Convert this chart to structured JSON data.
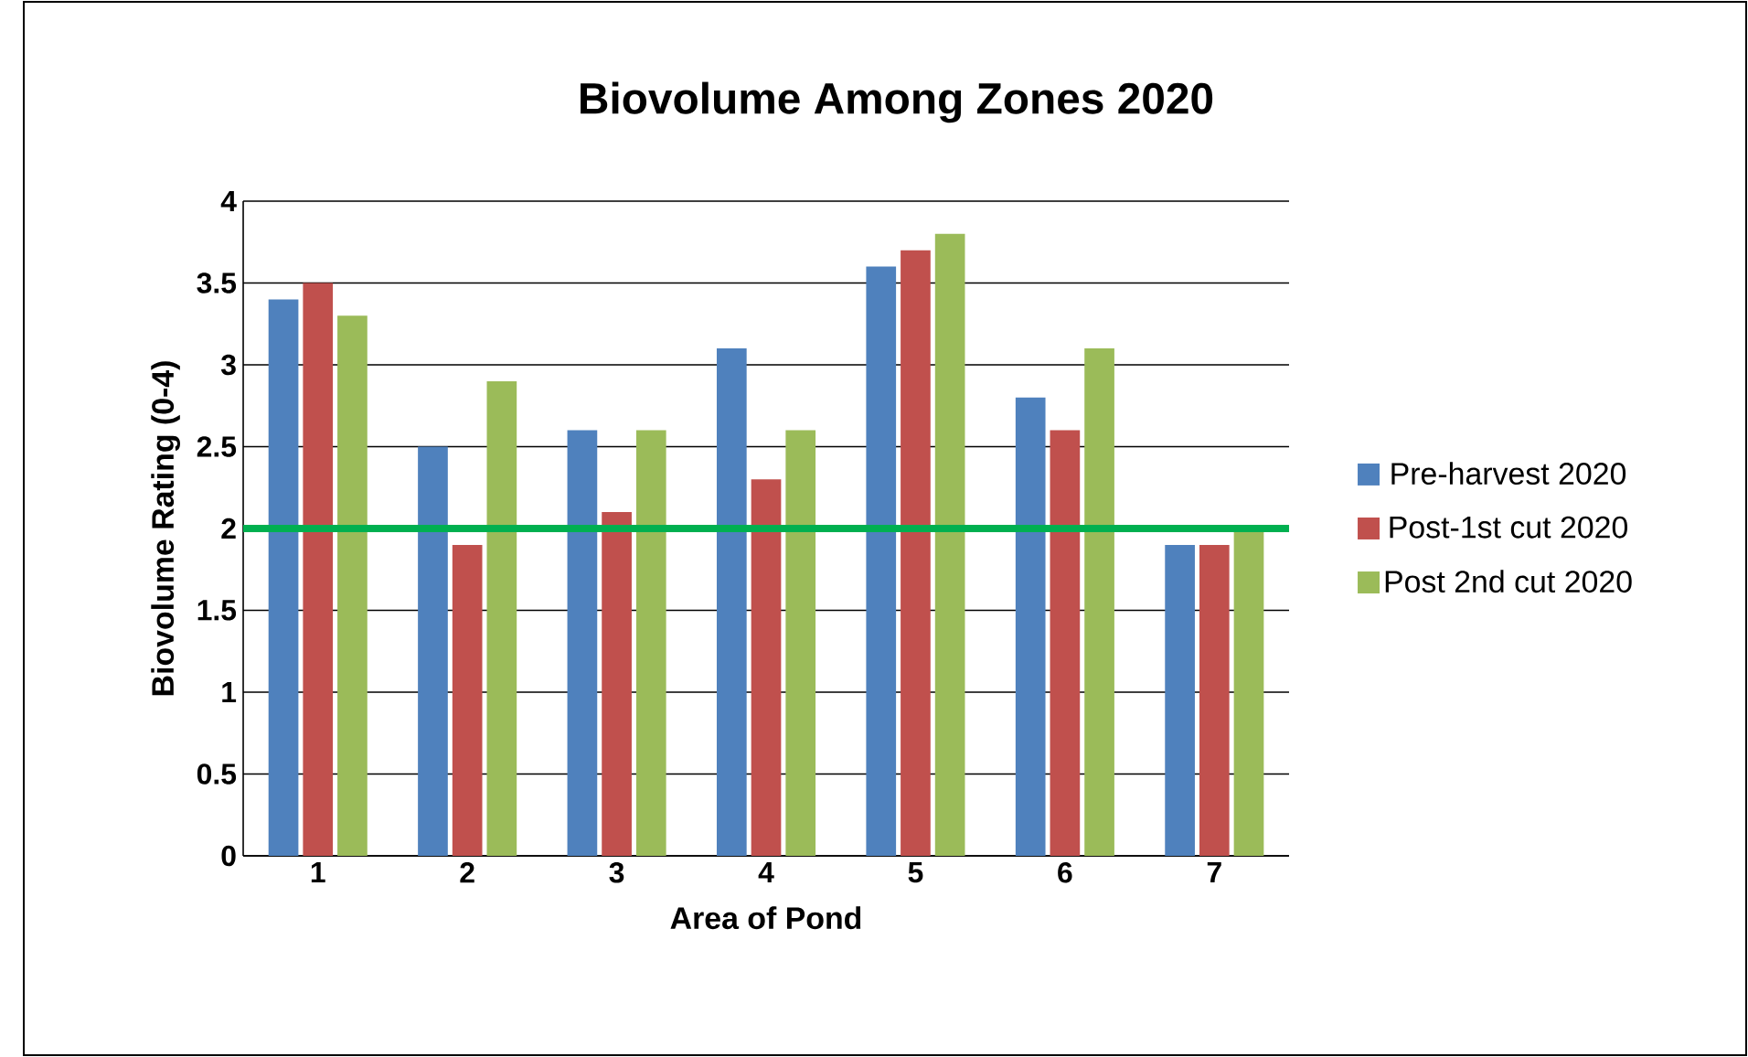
{
  "chart_data": {
    "type": "bar",
    "title": "Biovolume Among Zones 2020",
    "xlabel": "Area of Pond",
    "ylabel": "Biovolume Rating (0-4)",
    "categories": [
      "1",
      "2",
      "3",
      "4",
      "5",
      "6",
      "7"
    ],
    "series": [
      {
        "name": "Pre-harvest 2020",
        "color": "#4f81bd",
        "values": [
          3.4,
          2.5,
          2.6,
          3.1,
          3.6,
          2.8,
          1.9
        ]
      },
      {
        "name": "Post-1st cut 2020",
        "color": "#c0504d",
        "values": [
          3.5,
          1.9,
          2.1,
          2.3,
          3.7,
          2.6,
          1.9
        ]
      },
      {
        "name": "Post 2nd cut 2020",
        "color": "#9bbb59",
        "values": [
          3.3,
          2.9,
          2.6,
          2.6,
          3.8,
          3.1,
          2.0
        ]
      }
    ],
    "ylim": [
      0,
      4
    ],
    "yticks": [
      0,
      0.5,
      1,
      1.5,
      2,
      2.5,
      3,
      3.5,
      4
    ],
    "ref_lines": [
      {
        "axis": "y",
        "value": 2,
        "color": "#00b050"
      }
    ],
    "grid": "y",
    "legend": "right"
  }
}
